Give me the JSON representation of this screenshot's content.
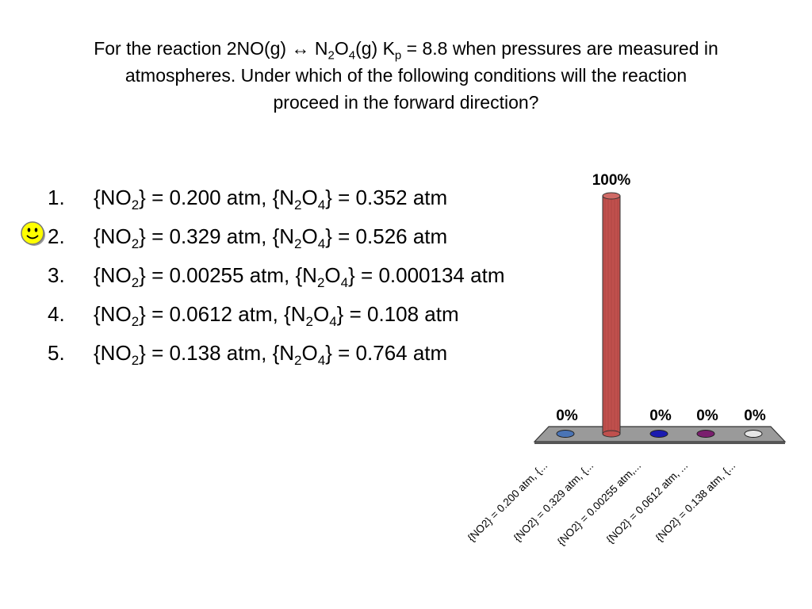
{
  "question": {
    "line1_a": "For the reaction 2NO(g) ↔ N",
    "sub_2": "2",
    "line1_b": "O",
    "sub_4": "4",
    "line1_c": "(g) K",
    "sub_p": "p",
    "line1_d": " = 8.8 when pressures are measured in",
    "line2": "atmospheres.  Under which of the following conditions will the reaction",
    "line3": "proceed in the forward direction?"
  },
  "answers": [
    {
      "num": "1.",
      "no2": "0.200",
      "n2o4": "0.352"
    },
    {
      "num": "2.",
      "no2": "0.329",
      "n2o4": "0.526"
    },
    {
      "num": "3.",
      "no2": "0.00255",
      "n2o4": "0.000134"
    },
    {
      "num": "4.",
      "no2": "0.0612",
      "n2o4": "0.108"
    },
    {
      "num": "5.",
      "no2": "0.138",
      "n2o4": "0.764"
    }
  ],
  "answer_text": {
    "open": "{NO",
    "sub2": "2",
    "mid1": "} = ",
    "mid2": " atm, {N",
    "o": "O",
    "sub4": "4",
    "close": "} = ",
    "unit": " atm"
  },
  "correct_marker": {
    "icon": "smiley-face-icon",
    "answer_index": 2,
    "color": "#ffff00"
  },
  "chart_data": {
    "type": "bar",
    "categories": [
      "{NO2} = 0.200 atm, {...",
      "{NO2} = 0.329 atm, {...",
      "{NO2} = 0.00255 atm,...",
      "{NO2} = 0.0612 atm, ...",
      "{NO2} = 0.138 atm, {..."
    ],
    "values": [
      0,
      100,
      0,
      0,
      0
    ],
    "value_labels": [
      "0%",
      "100%",
      "0%",
      "0%",
      "0%"
    ],
    "colors": [
      "#4a74b5",
      "#c0504d",
      "#1b1bb0",
      "#7a1f6e",
      "#e6e6e6"
    ],
    "ylim": [
      0,
      100
    ],
    "grid": false
  }
}
